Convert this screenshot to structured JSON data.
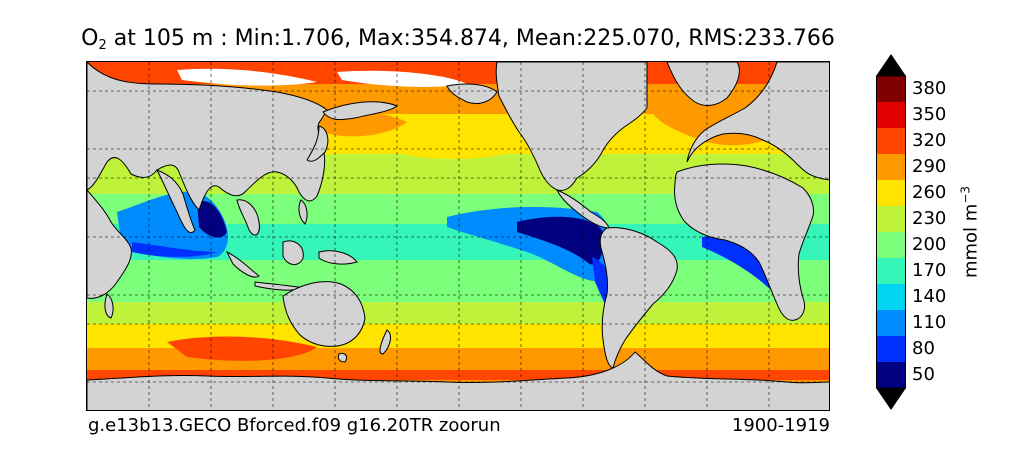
{
  "title": {
    "variable": "O",
    "subscript": "2",
    "text": " at 105 m : Min:1.706, Max:354.874, Mean:225.070, RMS:233.766"
  },
  "footer": {
    "left": "g.e13b13.GECO Bforced.f09 g16.20TR zoorun",
    "right": "1900-1919"
  },
  "colorbar": {
    "units": "mmol m",
    "units_exponent": "−3",
    "ticks": [
      "380",
      "350",
      "320",
      "290",
      "260",
      "230",
      "200",
      "170",
      "140",
      "110",
      "80",
      "50"
    ],
    "colors": [
      "#800000",
      "#e00000",
      "#ff4500",
      "#ff9900",
      "#ffe400",
      "#bff23a",
      "#7cff7a",
      "#36f5b8",
      "#00d4f0",
      "#008bff",
      "#0030ff",
      "#000080"
    ]
  },
  "map": {
    "land_color": "#d3d3d3",
    "ice_color": "#ffffff"
  }
}
